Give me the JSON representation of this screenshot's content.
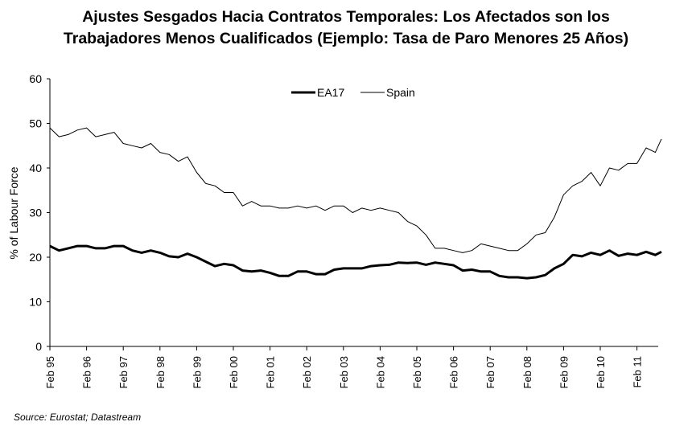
{
  "chart_data": {
    "type": "line",
    "title": [
      "Ajustes Sesgados Hacia Contratos Temporales: Los Afectados son los",
      "Trabajadores Menos Cualificados (Ejemplo: Tasa de Paro Menores 25 Años)"
    ],
    "xlabel": "",
    "ylabel": "% of Labour Force",
    "ylim": [
      0,
      60
    ],
    "yticks": [
      0,
      10,
      20,
      30,
      40,
      50,
      60
    ],
    "xtick_labels": [
      "Feb 95",
      "Feb 96",
      "Feb 97",
      "Feb 98",
      "Feb 99",
      "Feb 00",
      "Feb 01",
      "Feb 02",
      "Feb 03",
      "Feb 04",
      "Feb 05",
      "Feb 06",
      "Feb 07",
      "Feb 08",
      "Feb 09",
      "Feb 10",
      "Feb 11"
    ],
    "grid": false,
    "legend_position": "top-center",
    "x": [
      "1995-02",
      "1995-05",
      "1995-08",
      "1995-11",
      "1996-02",
      "1996-05",
      "1996-08",
      "1996-11",
      "1997-02",
      "1997-05",
      "1997-08",
      "1997-11",
      "1998-02",
      "1998-05",
      "1998-08",
      "1998-11",
      "1999-02",
      "1999-05",
      "1999-08",
      "1999-11",
      "2000-02",
      "2000-05",
      "2000-08",
      "2000-11",
      "2001-02",
      "2001-05",
      "2001-08",
      "2001-11",
      "2002-02",
      "2002-05",
      "2002-08",
      "2002-11",
      "2003-02",
      "2003-05",
      "2003-08",
      "2003-11",
      "2004-02",
      "2004-05",
      "2004-08",
      "2004-11",
      "2005-02",
      "2005-05",
      "2005-08",
      "2005-11",
      "2006-02",
      "2006-05",
      "2006-08",
      "2006-11",
      "2007-02",
      "2007-05",
      "2007-08",
      "2007-11",
      "2008-02",
      "2008-05",
      "2008-08",
      "2008-11",
      "2009-02",
      "2009-05",
      "2009-08",
      "2009-11",
      "2010-02",
      "2010-05",
      "2010-08",
      "2010-11",
      "2011-02",
      "2011-05",
      "2011-08",
      "2011-10"
    ],
    "series": [
      {
        "name": "EA17",
        "color": "#000000",
        "style": "thick",
        "values": [
          22.5,
          21.5,
          22,
          22.5,
          22.5,
          22,
          22,
          22.5,
          22.5,
          21.5,
          21,
          21.5,
          21,
          20.2,
          20,
          20.8,
          20,
          19,
          18,
          18.5,
          18.2,
          17,
          16.8,
          17,
          16.5,
          15.8,
          15.8,
          16.8,
          16.8,
          16.2,
          16.2,
          17.2,
          17.5,
          17.5,
          17.5,
          18,
          18.2,
          18.3,
          18.8,
          18.7,
          18.8,
          18.3,
          18.8,
          18.5,
          18.2,
          17,
          17.2,
          16.8,
          16.8,
          15.8,
          15.5,
          15.5,
          15.3,
          15.5,
          16,
          17.5,
          18.5,
          20.5,
          20.2,
          21,
          20.5,
          21.5,
          20.3,
          20.8,
          20.5,
          21.2,
          20.5,
          21.2
        ]
      },
      {
        "name": "Spain",
        "color": "#000000",
        "style": "thin",
        "values": [
          49,
          47,
          47.5,
          48.5,
          49,
          47,
          47.5,
          48,
          45.5,
          45,
          44.5,
          45.5,
          43.5,
          43,
          41.5,
          42.5,
          39,
          36.5,
          36,
          34.5,
          34.5,
          31.5,
          32.5,
          31.5,
          31.5,
          31,
          31,
          31.5,
          31,
          31.5,
          30.5,
          31.5,
          31.5,
          30,
          31,
          30.5,
          31,
          30.5,
          30,
          28,
          27,
          25,
          22,
          22,
          21.5,
          21,
          21.5,
          23,
          22.5,
          22,
          21.5,
          21.5,
          23,
          25,
          25.5,
          29,
          34,
          36,
          37,
          39,
          36,
          40,
          39.5,
          41,
          41,
          44.5,
          43.5,
          46.5
        ]
      }
    ]
  },
  "source": "Source: Eurostat; Datastream"
}
